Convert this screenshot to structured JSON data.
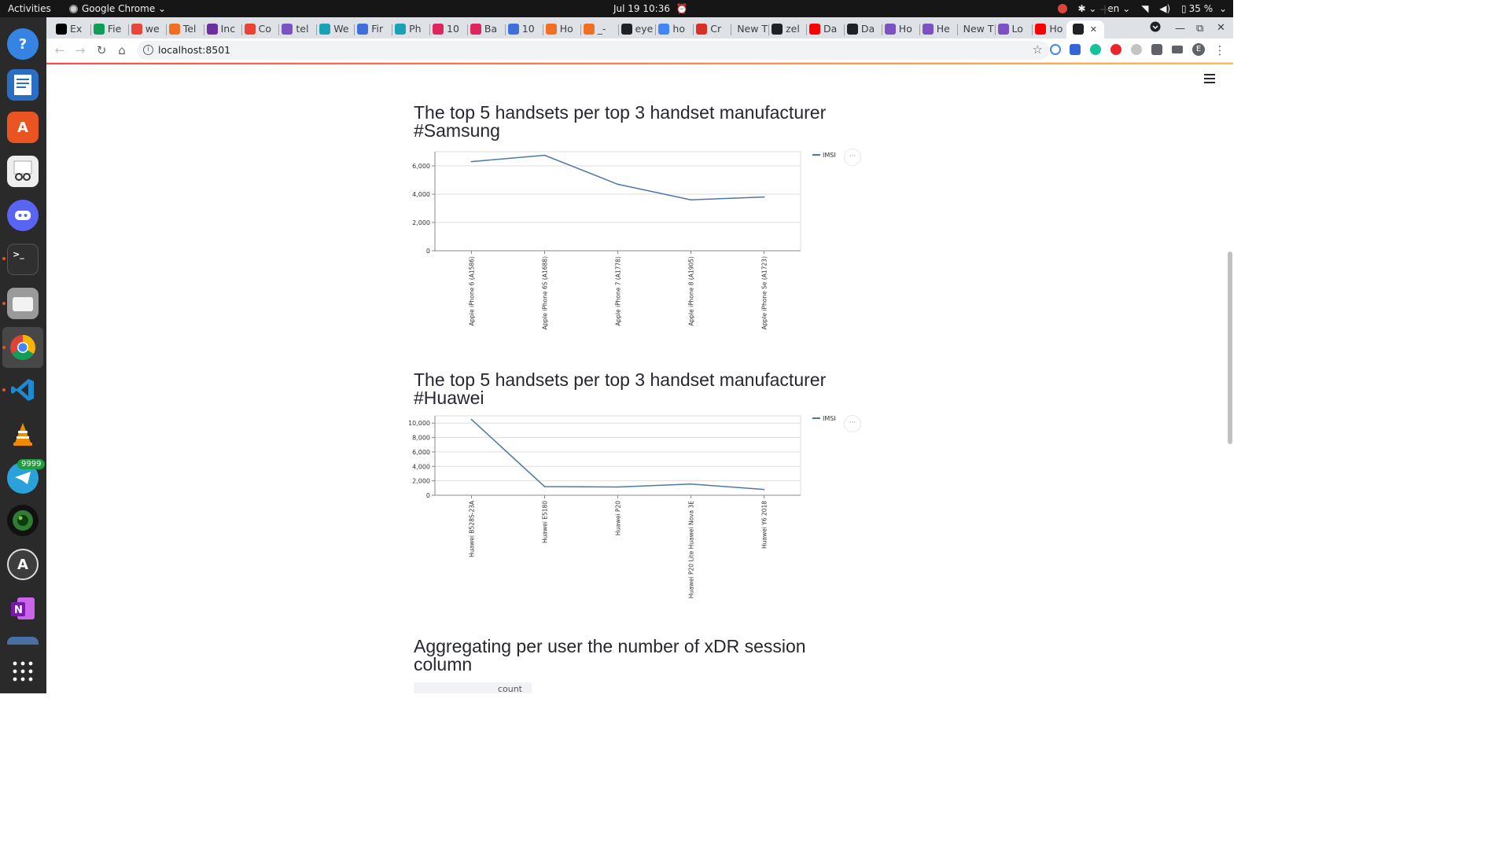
{
  "system_bar": {
    "activities": "Activities",
    "app_name": "Google Chrome",
    "clock": "Jul 19  10:36",
    "lang": "en",
    "battery": "35 %"
  },
  "dock": {
    "telegram_badge": "9999",
    "apps": [
      "help-icon",
      "writer-icon",
      "app-center-icon",
      "document-viewer-icon",
      "discord-icon",
      "terminal-icon",
      "files-icon",
      "chrome-icon",
      "vscode-icon",
      "vlc-icon",
      "telegram-icon",
      "camera-icon",
      "software-updater-icon",
      "onenote-icon",
      "app-grid-icon"
    ]
  },
  "browser": {
    "tabs": [
      "Ex",
      "Fie",
      "we",
      "Tel",
      "Inc",
      "Co",
      "tel",
      "We",
      "Fir",
      "Ph",
      "10",
      "Ba",
      "10",
      "Ho",
      "_-",
      "eye",
      "ho",
      "Cr",
      "New T",
      "zel",
      "Da",
      "Da",
      "Ho",
      "He",
      "New T",
      "Lo",
      "Ho",
      ""
    ],
    "url": "localhost:8501",
    "profile_initial": "E"
  },
  "page": {
    "sections": [
      {
        "title_line1": "The top 5 handsets per top 3 handset manufacturer",
        "title_line2": "#Samsung"
      },
      {
        "title_line1": "The top 5 handsets per top 3 handset manufacturer",
        "title_line2": "#Huawei"
      },
      {
        "title_line1": "Aggregating per user the number of xDR session",
        "title_line2": "column"
      }
    ],
    "dataframe_header": "count",
    "chart_menu_label": "···"
  },
  "colors": {
    "line": "#4c78a8",
    "grid": "#dddddd",
    "accent_gradient": [
      "#ff4b4b",
      "#ffbd45"
    ]
  },
  "chart_data": [
    {
      "type": "line",
      "categories": [
        "Apple iPhone 6 (A1586)",
        "Apple iPhone 6S (A1688)",
        "Apple iPhone 7 (A1778)",
        "Apple iPhone 8 (A1905)",
        "Apple iPhone Se (A1723)"
      ],
      "series": [
        {
          "name": "IMSI",
          "values": [
            6300,
            6750,
            4700,
            3600,
            3800
          ]
        }
      ],
      "yticks": [
        0,
        2000,
        4000,
        6000
      ],
      "ylim": [
        0,
        7000
      ],
      "grid": true,
      "legend": "top-right"
    },
    {
      "type": "line",
      "categories": [
        "Huawei B528S-23A",
        "Huawei E5180",
        "Huawei P20",
        "Huawei P20 Lite Huawei Nova 3E",
        "Huawei Y6 2018"
      ],
      "series": [
        {
          "name": "IMSI",
          "values": [
            10500,
            1200,
            1150,
            1550,
            800
          ]
        }
      ],
      "yticks": [
        0,
        2000,
        4000,
        6000,
        8000,
        10000
      ],
      "ylim": [
        0,
        11000
      ],
      "grid": true,
      "legend": "top-right"
    }
  ]
}
